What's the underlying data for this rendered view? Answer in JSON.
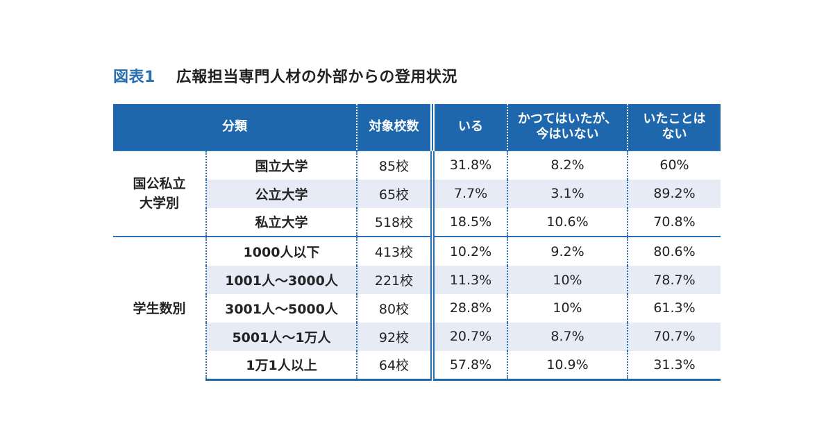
{
  "figure": {
    "label": "図表1",
    "title": "広報担当専門人材の外部からの登用状況"
  },
  "table": {
    "headers": {
      "category": "分類",
      "schools": "対象校数",
      "current": "いる",
      "past": "かつてはいたが、\n今はいない",
      "never": "いたことは\nない"
    },
    "groups": [
      {
        "name": "国公私立\n大学別",
        "rows": [
          {
            "category": "国立大学",
            "schools": "85校",
            "current": "31.8%",
            "past": "8.2%",
            "never": "60%"
          },
          {
            "category": "公立大学",
            "schools": "65校",
            "current": "7.7%",
            "past": "3.1%",
            "never": "89.2%"
          },
          {
            "category": "私立大学",
            "schools": "518校",
            "current": "18.5%",
            "past": "10.6%",
            "never": "70.8%"
          }
        ]
      },
      {
        "name": "学生数別",
        "rows": [
          {
            "category": "1000人以下",
            "schools": "413校",
            "current": "10.2%",
            "past": "9.2%",
            "never": "80.6%"
          },
          {
            "category": "1001人～3000人",
            "schools": "221校",
            "current": "11.3%",
            "past": "10%",
            "never": "78.7%"
          },
          {
            "category": "3001人～5000人",
            "schools": "80校",
            "current": "28.8%",
            "past": "10%",
            "never": "61.3%"
          },
          {
            "category": "5001人～1万人",
            "schools": "92校",
            "current": "20.7%",
            "past": "8.7%",
            "never": "70.7%"
          },
          {
            "category": "1万1人以上",
            "schools": "64校",
            "current": "57.8%",
            "past": "10.9%",
            "never": "31.3%"
          }
        ]
      }
    ]
  },
  "colors": {
    "accent": "#2a6fb0",
    "header_bg": "#1f67ad",
    "stripe": "#e6ebf5"
  }
}
